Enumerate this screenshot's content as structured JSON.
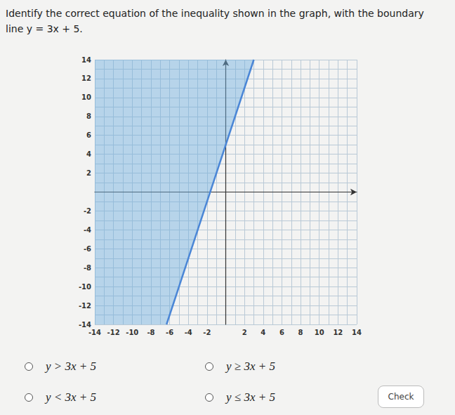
{
  "question_lines": [
    "Identify the correct equation of the inequality shown in the graph, with the boundary",
    "line y = 3x + 5."
  ],
  "options": [
    "y > 3x + 5",
    "y ≥ 3x + 5",
    "y < 3x + 5",
    "y ≤ 3x + 5"
  ],
  "button": "Check",
  "chart_data": {
    "type": "line",
    "x": [
      -6.33,
      3
    ],
    "values": [
      -14,
      14
    ],
    "color": "#4a86d6",
    "xlim": [
      -14,
      14
    ],
    "ylim": [
      -14,
      14
    ],
    "xticks": [
      -14,
      -12,
      -10,
      -8,
      -6,
      -4,
      -2,
      2,
      4,
      6,
      8,
      10,
      12,
      14
    ],
    "yticks": [
      -14,
      -12,
      -10,
      -8,
      -6,
      -4,
      -2,
      2,
      4,
      6,
      8,
      10,
      12,
      14
    ],
    "grid": true
  }
}
